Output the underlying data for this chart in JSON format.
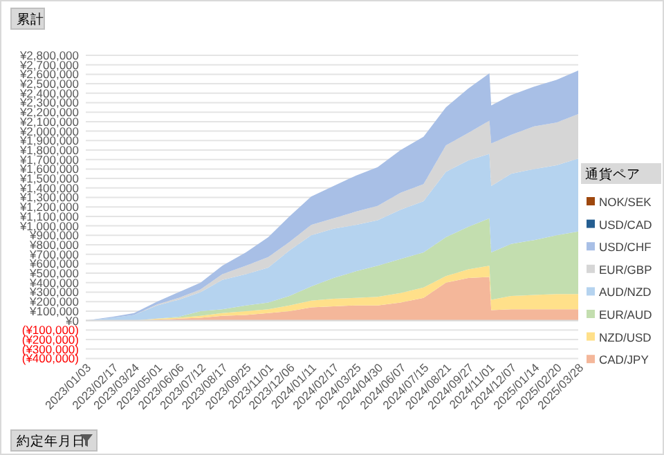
{
  "chart_data": {
    "type": "area",
    "stacked": true,
    "ylabel": "累計",
    "xlabel": "約定年月日",
    "legend_title": "通貨ペア",
    "legend": "right",
    "grid": "y",
    "x": [
      "2023-01-03",
      "2023-02-17",
      "2023-03-24",
      "2023-05-01",
      "2023-06-06",
      "2023-07-12",
      "2023-08-17",
      "2023-09-25",
      "2023-11-01",
      "2023-12-06",
      "2024-01-11",
      "2024-02-17",
      "2024-03-25",
      "2024-04-30",
      "2024-06-07",
      "2024-07-15",
      "2024-08-21",
      "2024-09-27",
      "2024-11-01",
      "2024-11-04",
      "2024-12-07",
      "2025-01-14",
      "2025-02-20",
      "2025-03-28"
    ],
    "xlim": [
      "2023-01-03",
      "2025-03-28"
    ],
    "xticks": [
      {
        "value": "2023-01-03",
        "label": "2023/01/03"
      },
      {
        "value": "2023-02-17",
        "label": "2023/02/17"
      },
      {
        "value": "2023-03-24",
        "label": "2023/03/24"
      },
      {
        "value": "2023-05-01",
        "label": "2023/05/01"
      },
      {
        "value": "2023-06-06",
        "label": "2023/06/06"
      },
      {
        "value": "2023-07-12",
        "label": "2023/07/12"
      },
      {
        "value": "2023-08-17",
        "label": "2023/08/17"
      },
      {
        "value": "2023-09-25",
        "label": "2023/09/25"
      },
      {
        "value": "2023-11-01",
        "label": "2023/11/01"
      },
      {
        "value": "2023-12-06",
        "label": "2023/12/06"
      },
      {
        "value": "2024-01-11",
        "label": "2024/01/11"
      },
      {
        "value": "2024-02-17",
        "label": "2024/02/17"
      },
      {
        "value": "2024-03-25",
        "label": "2024/03/25"
      },
      {
        "value": "2024-04-30",
        "label": "2024/04/30"
      },
      {
        "value": "2024-06-07",
        "label": "2024/06/07"
      },
      {
        "value": "2024-07-15",
        "label": "2024/07/15"
      },
      {
        "value": "2024-08-21",
        "label": "2024/08/21"
      },
      {
        "value": "2024-09-27",
        "label": "2024/09/27"
      },
      {
        "value": "2024-11-01",
        "label": "2024/11/01"
      },
      {
        "value": "2024-12-07",
        "label": "2024/12/07"
      },
      {
        "value": "2025-01-14",
        "label": "2025/01/14"
      },
      {
        "value": "2025-02-20",
        "label": "2025/02/20"
      },
      {
        "value": "2025-03-28",
        "label": "2025/03/28"
      }
    ],
    "ylim": [
      -400000,
      2800000
    ],
    "yticks": [
      {
        "value": -400000,
        "label": "(¥400,000)"
      },
      {
        "value": -300000,
        "label": "(¥300,000)"
      },
      {
        "value": -200000,
        "label": "(¥200,000)"
      },
      {
        "value": -100000,
        "label": "(¥100,000)"
      },
      {
        "value": 0,
        "label": "¥0"
      },
      {
        "value": 100000,
        "label": "¥100,000"
      },
      {
        "value": 200000,
        "label": "¥200,000"
      },
      {
        "value": 300000,
        "label": "¥300,000"
      },
      {
        "value": 400000,
        "label": "¥400,000"
      },
      {
        "value": 500000,
        "label": "¥500,000"
      },
      {
        "value": 600000,
        "label": "¥600,000"
      },
      {
        "value": 700000,
        "label": "¥700,000"
      },
      {
        "value": 800000,
        "label": "¥800,000"
      },
      {
        "value": 900000,
        "label": "¥900,000"
      },
      {
        "value": 1000000,
        "label": "¥1,000,000"
      },
      {
        "value": 1100000,
        "label": "¥1,100,000"
      },
      {
        "value": 1200000,
        "label": "¥1,200,000"
      },
      {
        "value": 1300000,
        "label": "¥1,300,000"
      },
      {
        "value": 1400000,
        "label": "¥1,400,000"
      },
      {
        "value": 1500000,
        "label": "¥1,500,000"
      },
      {
        "value": 1600000,
        "label": "¥1,600,000"
      },
      {
        "value": 1700000,
        "label": "¥1,700,000"
      },
      {
        "value": 1800000,
        "label": "¥1,800,000"
      },
      {
        "value": 1900000,
        "label": "¥1,900,000"
      },
      {
        "value": 2000000,
        "label": "¥2,000,000"
      },
      {
        "value": 2100000,
        "label": "¥2,100,000"
      },
      {
        "value": 2200000,
        "label": "¥2,200,000"
      },
      {
        "value": 2300000,
        "label": "¥2,300,000"
      },
      {
        "value": 2400000,
        "label": "¥2,400,000"
      },
      {
        "value": 2500000,
        "label": "¥2,500,000"
      },
      {
        "value": 2600000,
        "label": "¥2,600,000"
      },
      {
        "value": 2700000,
        "label": "¥2,700,000"
      },
      {
        "value": 2800000,
        "label": "¥2,800,000"
      }
    ],
    "series": [
      {
        "name": "CAD/JPY",
        "color": "#f4b79a",
        "values": [
          0,
          0,
          0,
          10000,
          20000,
          30000,
          50000,
          60000,
          80000,
          100000,
          140000,
          150000,
          160000,
          160000,
          190000,
          240000,
          400000,
          450000,
          460000,
          110000,
          120000,
          120000,
          120000,
          120000
        ]
      },
      {
        "name": "NZD/USD",
        "color": "#ffe08a",
        "values": [
          0,
          0,
          0,
          10000,
          10000,
          20000,
          30000,
          40000,
          40000,
          60000,
          70000,
          80000,
          80000,
          90000,
          100000,
          110000,
          70000,
          90000,
          120000,
          110000,
          140000,
          150000,
          160000,
          160000
        ]
      },
      {
        "name": "EUR/AUD",
        "color": "#c3deaf",
        "values": [
          0,
          0,
          0,
          0,
          10000,
          50000,
          40000,
          60000,
          70000,
          100000,
          150000,
          220000,
          280000,
          330000,
          360000,
          370000,
          410000,
          450000,
          500000,
          500000,
          550000,
          580000,
          620000,
          660000
        ]
      },
      {
        "name": "AUD/NZD",
        "color": "#b5d3ef",
        "values": [
          0,
          30000,
          60000,
          140000,
          180000,
          200000,
          310000,
          330000,
          370000,
          480000,
          540000,
          520000,
          490000,
          480000,
          520000,
          540000,
          690000,
          700000,
          680000,
          700000,
          740000,
          750000,
          740000,
          770000
        ]
      },
      {
        "name": "EUR/GBP",
        "color": "#d6d6d6",
        "values": [
          0,
          0,
          0,
          10000,
          20000,
          30000,
          60000,
          90000,
          110000,
          90000,
          110000,
          110000,
          140000,
          150000,
          180000,
          180000,
          280000,
          290000,
          350000,
          450000,
          410000,
          450000,
          450000,
          470000
        ]
      },
      {
        "name": "USD/CHF",
        "color": "#a8bfe6",
        "values": [
          0,
          10000,
          20000,
          30000,
          60000,
          70000,
          90000,
          140000,
          210000,
          270000,
          300000,
          340000,
          380000,
          410000,
          450000,
          500000,
          400000,
          470000,
          500000,
          400000,
          420000,
          420000,
          450000,
          460000
        ]
      },
      {
        "name": "USD/CAD",
        "color": "#255e91",
        "values": [
          null,
          null,
          null,
          null,
          null,
          null,
          null,
          null,
          null,
          null,
          null,
          null,
          null,
          null,
          null,
          null,
          null,
          null,
          null,
          null,
          null,
          null,
          null,
          null
        ]
      },
      {
        "name": "NOK/SEK",
        "color": "#9e480e",
        "values": [
          null,
          null,
          null,
          null,
          null,
          null,
          null,
          null,
          null,
          null,
          null,
          null,
          null,
          null,
          null,
          null,
          null,
          null,
          null,
          null,
          null,
          null,
          null,
          null
        ]
      }
    ]
  }
}
